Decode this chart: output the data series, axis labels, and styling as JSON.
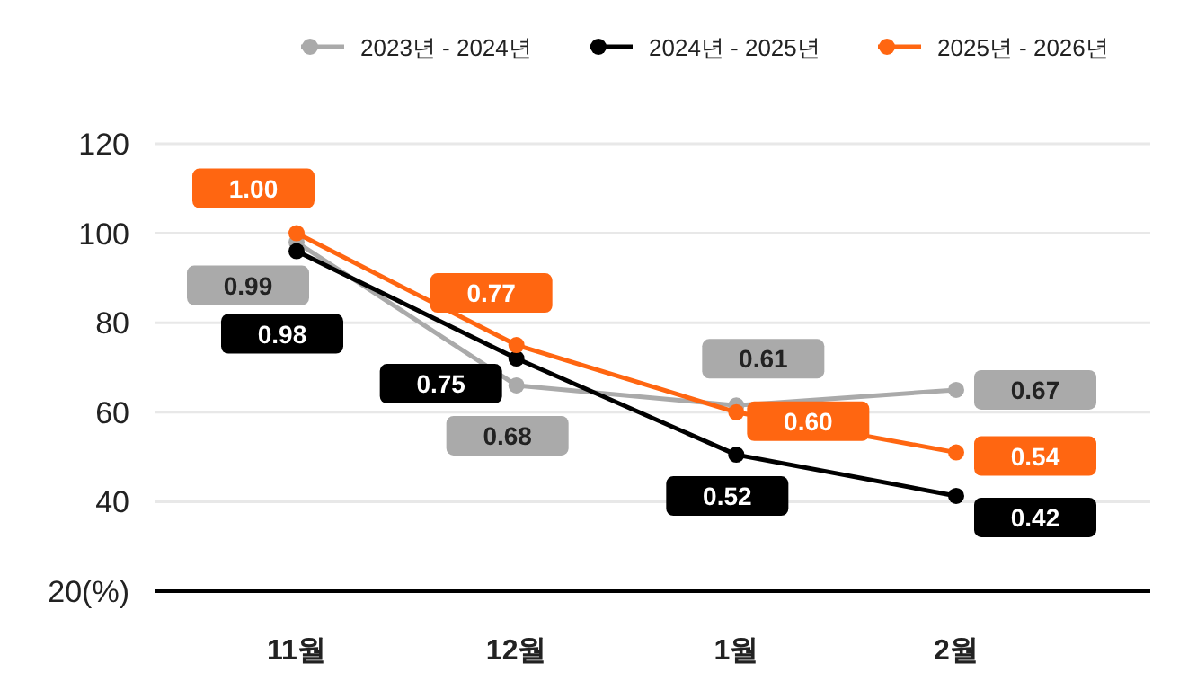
{
  "chart_data": {
    "type": "line",
    "categories": [
      "11월",
      "12월",
      "1월",
      "2월"
    ],
    "series": [
      {
        "name": "2023년 - 2024년",
        "color": "#aaaaaa",
        "values": [
          98,
          66,
          61.5,
          65
        ]
      },
      {
        "name": "2024년 - 2025년",
        "color": "#000000",
        "values": [
          96,
          72,
          50.5,
          41.3
        ]
      },
      {
        "name": "2025년 - 2026년",
        "color": "#ff6611",
        "values": [
          100,
          75,
          60,
          51
        ]
      }
    ],
    "annotations": [
      {
        "text": "0.99",
        "x": "11월",
        "y": 98
      },
      {
        "text": "0.68",
        "x": "12월",
        "y": 66
      },
      {
        "text": "0.61",
        "x": "1월",
        "y": 61.5
      },
      {
        "text": "0.67",
        "x": "2월",
        "y": 65
      },
      {
        "text": "0.98",
        "x": "11월",
        "y": 96
      },
      {
        "text": "0.75",
        "x": "12월",
        "y": 72
      },
      {
        "text": "0.52",
        "x": "1월",
        "y": 50.5
      },
      {
        "text": "0.42",
        "x": "2월",
        "y": 41.3
      },
      {
        "text": "1.00",
        "x": "11월",
        "y": 100
      },
      {
        "text": "0.77",
        "x": "12월",
        "y": 75
      },
      {
        "text": "0.60",
        "x": "1월",
        "y": 60
      },
      {
        "text": "0.54",
        "x": "2월",
        "y": 51
      }
    ],
    "ylim": [
      20,
      120
    ],
    "yticks": [
      {
        "value": 20,
        "label": "20(%)"
      },
      40,
      60,
      80,
      100,
      120
    ],
    "grid": "y",
    "legend": "top right",
    "marker": "circle",
    "line_style": "solid"
  }
}
